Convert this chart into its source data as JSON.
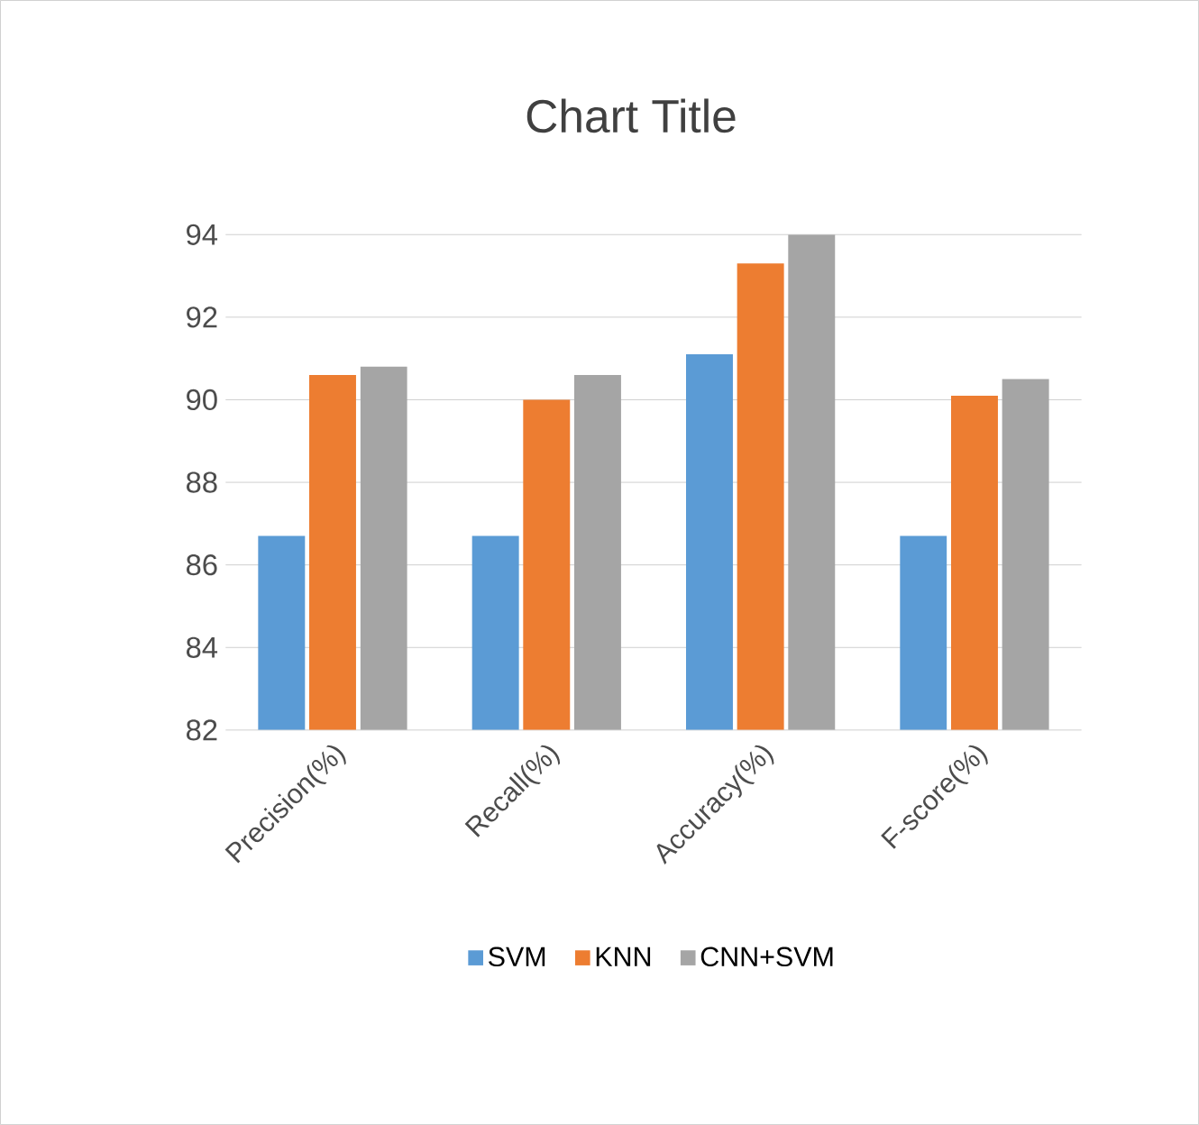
{
  "chart_data": {
    "type": "bar",
    "title": "Chart Title",
    "categories": [
      "Precision(%)",
      "Recall(%)",
      "Accuracy(%)",
      "F-score(%)"
    ],
    "series": [
      {
        "name": "SVM",
        "color": "#5b9bd5",
        "values": [
          86.7,
          86.7,
          91.1,
          86.7
        ]
      },
      {
        "name": "KNN",
        "color": "#ed7d31",
        "values": [
          90.6,
          90.0,
          93.3,
          90.1
        ]
      },
      {
        "name": "CNN+SVM",
        "color": "#a5a5a5",
        "values": [
          90.8,
          90.6,
          94.0,
          90.5
        ]
      }
    ],
    "ylim": [
      82,
      94
    ],
    "yticks": [
      82,
      84,
      86,
      88,
      90,
      92,
      94
    ],
    "grid": "y",
    "legend": "bottom"
  }
}
